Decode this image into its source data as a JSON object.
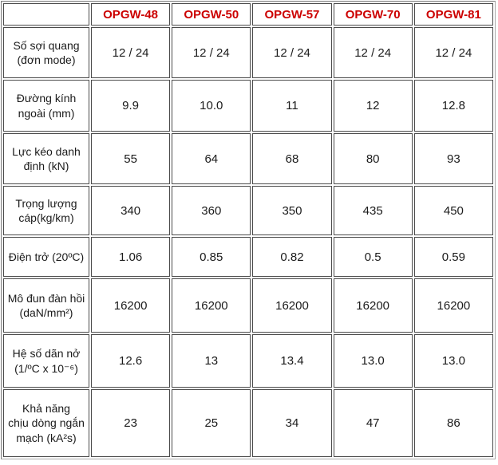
{
  "colors": {
    "header_text": "#cc0000",
    "body_text": "#1b1b1b",
    "cell_border": "#4b4b4b",
    "outer_border": "#9a9a9a",
    "background": "#ffffff"
  },
  "table": {
    "headers": [
      "",
      "OPGW-48",
      "OPGW-50",
      "OPGW-57",
      "OPGW-70",
      "OPGW-81"
    ],
    "rows": [
      {
        "label": "Số sợi quang\n(đơn mode)",
        "values": [
          "12 / 24",
          "12 / 24",
          "12 / 24",
          "12 / 24",
          "12 / 24"
        ]
      },
      {
        "label": "Đường kính\nngoài (mm)",
        "values": [
          "9.9",
          "10.0",
          "11",
          "12",
          "12.8"
        ]
      },
      {
        "label": "Lực kéo danh\nđịnh (kN)",
        "values": [
          "55",
          "64",
          "68",
          "80",
          "93"
        ]
      },
      {
        "label": "Trọng lượng\ncáp(kg/km)",
        "values": [
          "340",
          "360",
          "350",
          "435",
          "450"
        ]
      },
      {
        "label": "Điện trở (20ºC)",
        "values": [
          "1.06",
          "0.85",
          "0.82",
          "0.5",
          "0.59"
        ]
      },
      {
        "label": "Mô đun đàn hồi\n(daN/mm²)",
        "values": [
          "16200",
          "16200",
          "16200",
          "16200",
          "16200"
        ]
      },
      {
        "label": "Hệ số dãn nở\n(1/ºC x 10⁻⁶)",
        "values": [
          "12.6",
          "13",
          "13.4",
          "13.0",
          "13.0"
        ]
      },
      {
        "label": "Khả năng\nchịu dòng ngắn\nmạch (kA²s)",
        "values": [
          "23",
          "25",
          "34",
          "47",
          "86"
        ]
      }
    ]
  }
}
